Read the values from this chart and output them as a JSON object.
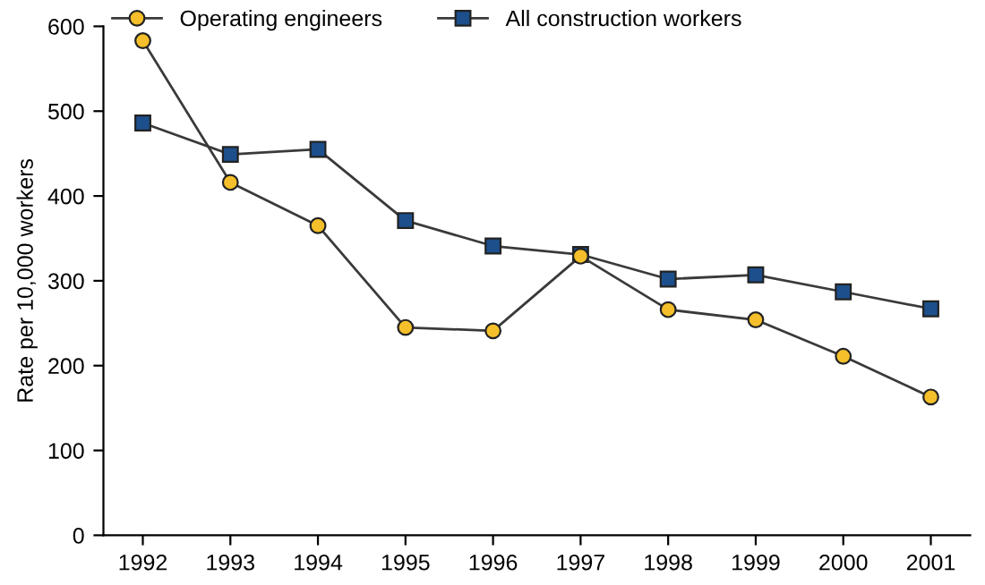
{
  "chart_data": {
    "type": "line",
    "ylabel": "Rate per 10,000 workers",
    "categories": [
      "1992",
      "1993",
      "1994",
      "1995",
      "1996",
      "1997",
      "1998",
      "1999",
      "2000",
      "2001"
    ],
    "series": [
      {
        "name": "Operating engineers",
        "color": "#f4bf2a",
        "marker": "circle",
        "values": [
          583,
          416,
          365,
          245,
          241,
          329,
          266,
          254,
          211,
          163
        ]
      },
      {
        "name": "All construction workers",
        "color": "#1c4f8c",
        "marker": "square",
        "values": [
          486,
          449,
          455,
          371,
          341,
          331,
          302,
          307,
          287,
          267
        ]
      }
    ],
    "ylim": [
      0,
      600
    ],
    "yticks": [
      0,
      100,
      200,
      300,
      400,
      500,
      600
    ],
    "grid": false,
    "legend": "top left",
    "line_style": "solid"
  }
}
